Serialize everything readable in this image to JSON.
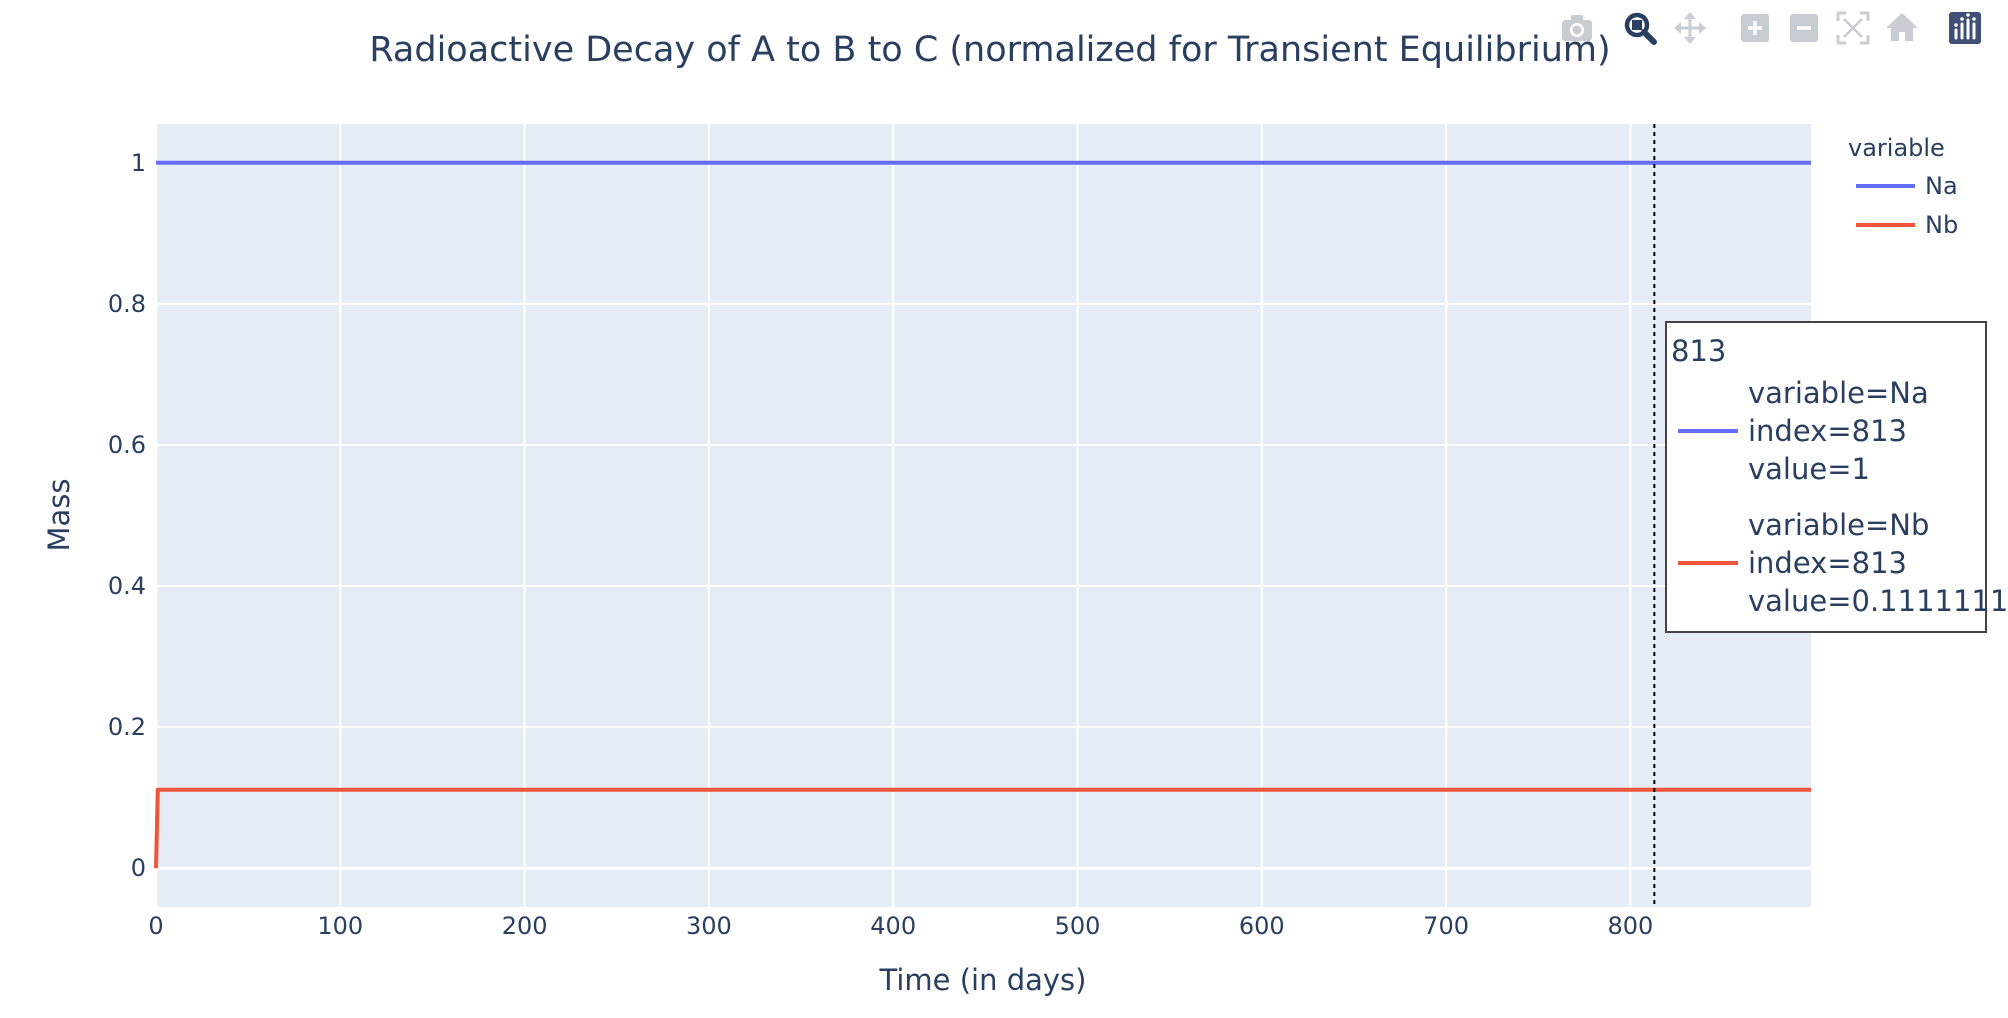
{
  "toolbar": {
    "buttons": [
      {
        "name": "download-plot-button",
        "icon": "camera-icon"
      },
      {
        "name": "zoom-button",
        "icon": "zoom-icon"
      },
      {
        "name": "pan-button",
        "icon": "pan-icon"
      },
      {
        "name": "zoom-in-button",
        "icon": "zoom-in-icon"
      },
      {
        "name": "zoom-out-button",
        "icon": "zoom-out-icon"
      },
      {
        "name": "autoscale-button",
        "icon": "autoscale-icon"
      },
      {
        "name": "reset-axes-button",
        "icon": "home-icon"
      },
      {
        "name": "plotly-logo-button",
        "icon": "plotly-logo-icon"
      }
    ],
    "active_color": "#2a3f5f",
    "inactive_color": "#c8cdd4",
    "logo_color": "#3f4f75"
  },
  "chart_data": {
    "type": "line",
    "title": "Radioactive Decay of A to B to C (normalized for Transient Equilibrium)",
    "xlabel": "Time (in days)",
    "ylabel": "Mass",
    "xlim": [
      0,
      898
    ],
    "ylim": [
      -0.055,
      1.055
    ],
    "xticks": [
      0,
      100,
      200,
      300,
      400,
      500,
      600,
      700,
      800
    ],
    "yticks": [
      0,
      0.2,
      0.4,
      0.6,
      0.8,
      1
    ],
    "xtick_labels": [
      "0",
      "100",
      "200",
      "300",
      "400",
      "500",
      "600",
      "700",
      "800"
    ],
    "ytick_labels": [
      "0",
      "0.2",
      "0.4",
      "0.6",
      "0.8",
      "1"
    ],
    "grid": true,
    "plot_bgcolor": "#e5ecf6",
    "legend": {
      "title": "variable",
      "placement": "top-right",
      "entries": [
        "Na",
        "Nb"
      ]
    },
    "series": [
      {
        "name": "Na",
        "color": "#636efa",
        "x": [
          0,
          898
        ],
        "y": [
          1,
          1
        ]
      },
      {
        "name": "Nb",
        "color": "#ef553b",
        "x": [
          0,
          1,
          898
        ],
        "y": [
          0,
          0.1111111,
          0.1111111
        ]
      }
    ],
    "hover": {
      "x": 813,
      "header": "813",
      "items": [
        {
          "color": "#636efa",
          "lines": [
            "variable=Na",
            "index=813",
            "value=1"
          ]
        },
        {
          "color": "#ef553b",
          "lines": [
            "variable=Nb",
            "index=813",
            "value=0.1111111"
          ]
        }
      ]
    }
  }
}
